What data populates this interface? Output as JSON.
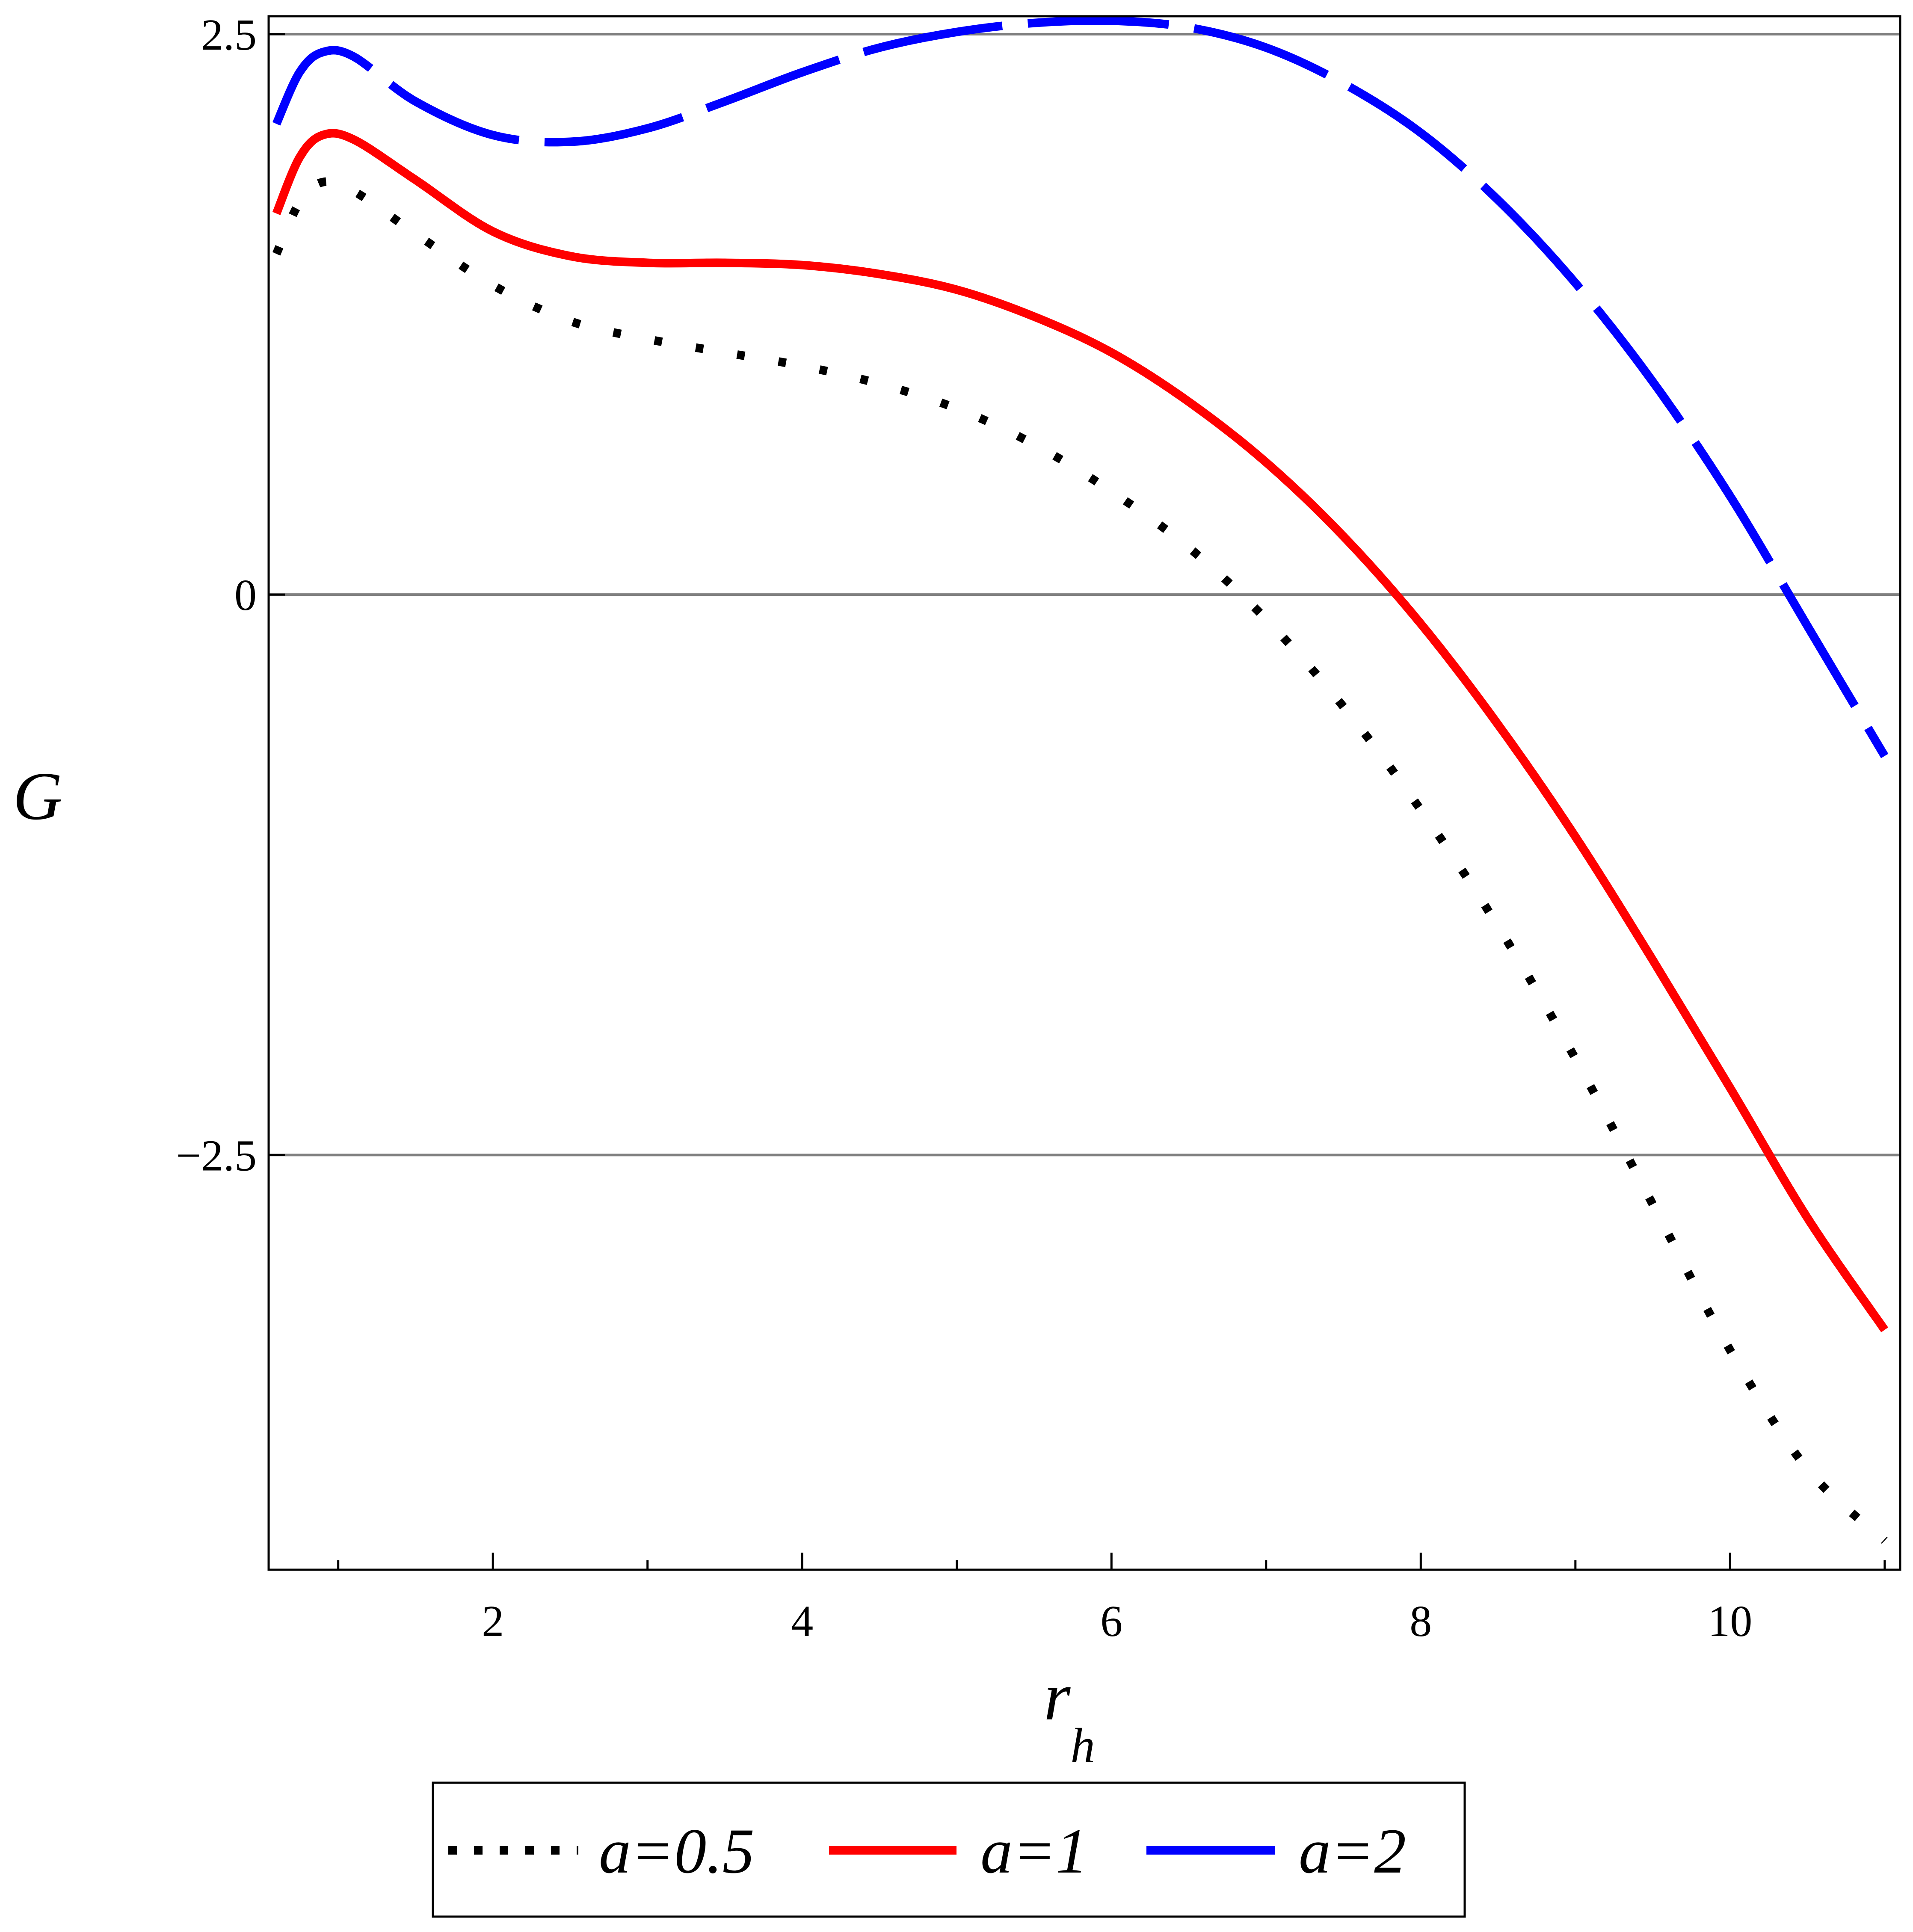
{
  "chart_data": {
    "type": "line",
    "xlabel": "r",
    "xlabel_sub": "h",
    "ylabel": "G",
    "xlim": [
      0.55,
      11.1
    ],
    "ylim": [
      -4.35,
      2.58
    ],
    "xticks_major": [
      2,
      4,
      6,
      8,
      10
    ],
    "xticks_minor": [
      1,
      3,
      5,
      7,
      9,
      11
    ],
    "yticks": [
      2.5,
      0,
      -2.5
    ],
    "ytick_labels": [
      "2.5",
      "0",
      "−2.5"
    ],
    "xtick_labels": [
      "2",
      "4",
      "6",
      "8",
      "10"
    ],
    "grid": "horizontal at y ticks",
    "legend_position": "bottom",
    "series": [
      {
        "name": "a=0.5",
        "color": "#000000",
        "style": "dotted",
        "points": [
          [
            0.6,
            1.52
          ],
          [
            0.75,
            1.75
          ],
          [
            0.9,
            1.84
          ],
          [
            1.1,
            1.8
          ],
          [
            1.5,
            1.61
          ],
          [
            2.0,
            1.38
          ],
          [
            2.5,
            1.22
          ],
          [
            3.0,
            1.14
          ],
          [
            3.5,
            1.08
          ],
          [
            4.0,
            1.02
          ],
          [
            4.5,
            0.94
          ],
          [
            5.0,
            0.83
          ],
          [
            5.5,
            0.67
          ],
          [
            6.0,
            0.46
          ],
          [
            6.5,
            0.21
          ],
          [
            7.0,
            -0.11
          ],
          [
            7.5,
            -0.5
          ],
          [
            8.0,
            -0.96
          ],
          [
            8.5,
            -1.48
          ],
          [
            9.0,
            -2.07
          ],
          [
            9.5,
            -2.72
          ],
          [
            10.0,
            -3.37
          ],
          [
            10.5,
            -3.9
          ],
          [
            11.0,
            -4.22
          ]
        ]
      },
      {
        "name": "a=1",
        "color": "#ff0000",
        "style": "solid",
        "points": [
          [
            0.6,
            1.7
          ],
          [
            0.75,
            1.95
          ],
          [
            0.9,
            2.05
          ],
          [
            1.1,
            2.03
          ],
          [
            1.5,
            1.85
          ],
          [
            2.0,
            1.62
          ],
          [
            2.5,
            1.51
          ],
          [
            3.0,
            1.48
          ],
          [
            3.5,
            1.48
          ],
          [
            4.0,
            1.47
          ],
          [
            4.5,
            1.43
          ],
          [
            5.0,
            1.36
          ],
          [
            5.5,
            1.24
          ],
          [
            6.0,
            1.08
          ],
          [
            6.5,
            0.86
          ],
          [
            7.0,
            0.59
          ],
          [
            7.5,
            0.26
          ],
          [
            8.0,
            -0.13
          ],
          [
            8.5,
            -0.58
          ],
          [
            9.0,
            -1.08
          ],
          [
            9.5,
            -1.63
          ],
          [
            10.0,
            -2.2
          ],
          [
            10.5,
            -2.78
          ],
          [
            11.0,
            -3.28
          ]
        ]
      },
      {
        "name": "a=2",
        "color": "#0000ff",
        "style": "dashed",
        "points": [
          [
            0.6,
            2.1
          ],
          [
            0.75,
            2.33
          ],
          [
            0.9,
            2.42
          ],
          [
            1.1,
            2.4
          ],
          [
            1.5,
            2.2
          ],
          [
            2.0,
            2.05
          ],
          [
            2.5,
            2.02
          ],
          [
            3.0,
            2.08
          ],
          [
            3.5,
            2.2
          ],
          [
            4.0,
            2.33
          ],
          [
            4.5,
            2.44
          ],
          [
            5.0,
            2.51
          ],
          [
            5.5,
            2.55
          ],
          [
            6.0,
            2.56
          ],
          [
            6.5,
            2.53
          ],
          [
            7.0,
            2.44
          ],
          [
            7.5,
            2.28
          ],
          [
            8.0,
            2.06
          ],
          [
            8.5,
            1.76
          ],
          [
            9.0,
            1.39
          ],
          [
            9.5,
            0.95
          ],
          [
            10.0,
            0.44
          ],
          [
            10.5,
            -0.14
          ],
          [
            11.0,
            -0.72
          ]
        ]
      }
    ]
  }
}
